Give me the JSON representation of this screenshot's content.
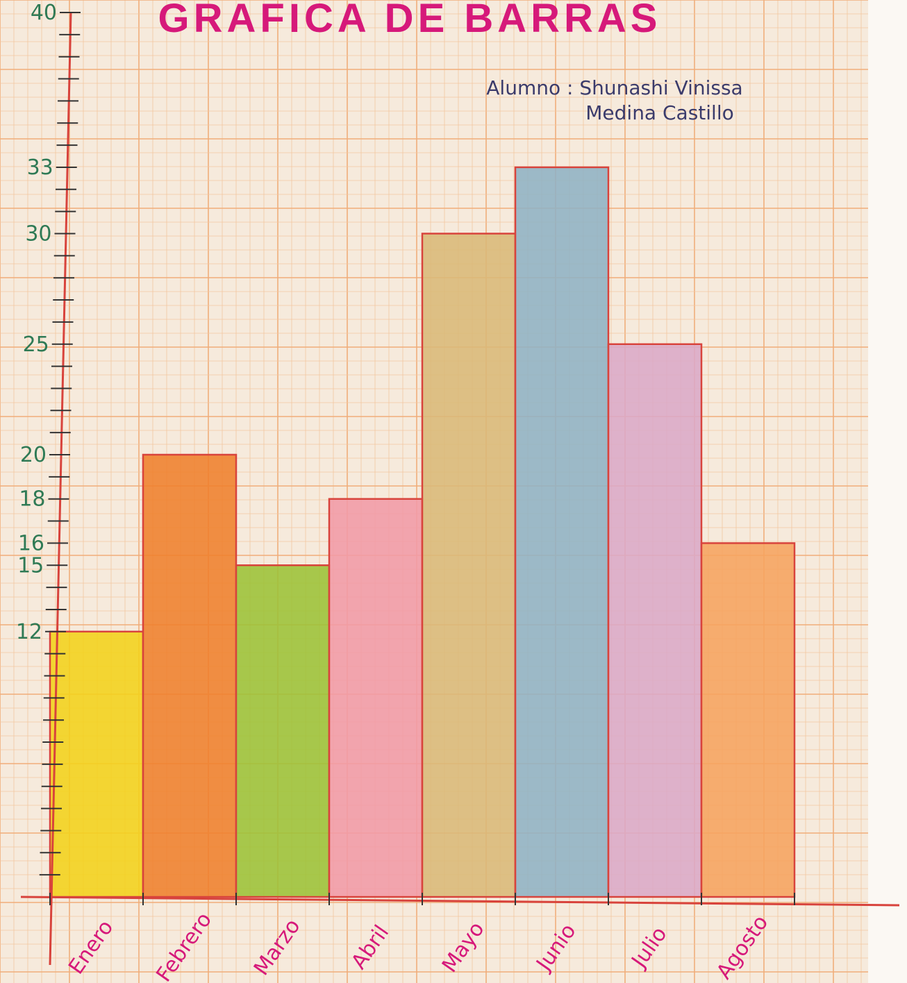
{
  "chart_data": {
    "type": "bar",
    "title": "GRAFICA DE BARRAS",
    "author_label": "Alumno : Shunashi Vinissa",
    "author_label_2": "Medina Castillo",
    "categories": [
      "Enero",
      "Febrero",
      "Marzo",
      "Abril",
      "Mayo",
      "Junio",
      "Julio",
      "Agosto"
    ],
    "values": [
      12,
      20,
      15,
      18,
      30,
      33,
      25,
      16
    ],
    "colors": [
      "#f2d21a",
      "#ef7f2c",
      "#9cc237",
      "#f19aa6",
      "#d9b878",
      "#8fb2c4",
      "#dba9c7",
      "#f6a35e"
    ],
    "ylim": [
      0,
      40
    ],
    "y_tick_labels": [
      12,
      15,
      16,
      18,
      20,
      25,
      30,
      33,
      40
    ],
    "grid": true,
    "xlabel": "",
    "ylabel": ""
  },
  "theme": {
    "paper": "#f6eadc",
    "grid_minor": "#f3c7a1",
    "grid_major": "#f0ad7a",
    "axis": "#d8433c",
    "title_color": "#d6197a",
    "tick_text": "#2f7a55",
    "ink": "#3b3b6b"
  }
}
